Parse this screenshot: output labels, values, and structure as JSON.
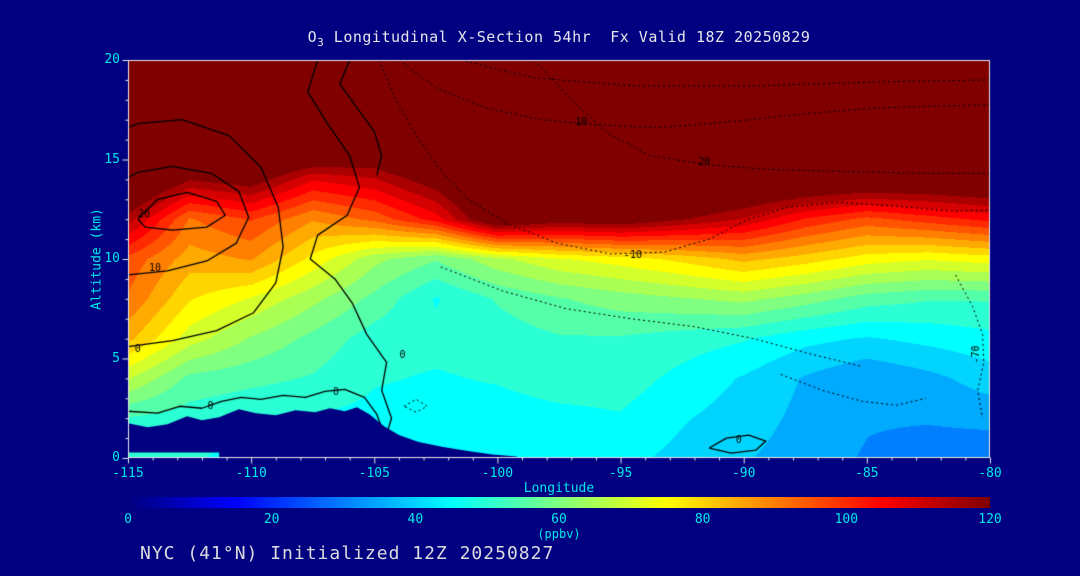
{
  "figure": {
    "title": {
      "pre": "O",
      "sub": "3",
      "rest": " Longitudinal X-Section 54hr  Fx Valid 18Z 20250829"
    },
    "caption": "NYC (41°N) Initialized 12Z 20250827",
    "colors": {
      "background": "#000080",
      "tick_label": "#00e8e8",
      "axis_label": "#00e8e8",
      "title_text": "#e6e6ea",
      "caption_text": "#dcdce0",
      "frame": "#e8e8e8",
      "contour": "#000000",
      "terrain": "#000080"
    }
  },
  "axes": {
    "x": {
      "label": "Longitude",
      "range": [
        -115,
        -80
      ],
      "ticks": [
        -115,
        -110,
        -105,
        -100,
        -95,
        -90,
        -85,
        -80
      ],
      "minor_step": 1
    },
    "y": {
      "label": "Altitude (km)",
      "range": [
        0,
        20
      ],
      "ticks": [
        0,
        5,
        10,
        15,
        20
      ],
      "minor_step": 1
    }
  },
  "colorbar": {
    "units": "(ppbv)",
    "range": [
      0,
      120
    ],
    "ticks": [
      0,
      20,
      40,
      60,
      80,
      100,
      120
    ],
    "colormap": "jet"
  },
  "chart_data": {
    "type": "heatmap",
    "title": "O3 Longitudinal X-Section 54hr  Fx Valid 18Z 20250829",
    "xlabel": "Longitude",
    "ylabel": "Altitude (km)",
    "units": "ppbv",
    "colormap": "jet",
    "clim": [
      0,
      120
    ],
    "band_step_ppbv": 5,
    "x_lon": [
      -115,
      -112.5,
      -110,
      -107.5,
      -105,
      -102.5,
      -100,
      -97.5,
      -95,
      -92.5,
      -90,
      -87.5,
      -85,
      -82.5,
      -80
    ],
    "y_alt_km": [
      0,
      2,
      4,
      6,
      8,
      10,
      12,
      14,
      16,
      18,
      20
    ],
    "values_ppbv": [
      [
        50,
        48,
        46,
        45,
        45,
        44,
        43,
        44,
        44,
        41,
        38,
        35,
        32,
        30,
        29
      ],
      [
        52,
        50,
        48,
        47,
        46,
        45,
        45,
        46,
        47,
        43,
        40,
        36,
        33,
        33,
        34
      ],
      [
        68,
        56,
        54,
        52,
        48,
        47,
        48,
        50,
        50,
        46,
        42,
        37,
        33,
        36,
        40
      ],
      [
        84,
        70,
        62,
        56,
        50,
        49,
        50,
        52,
        52,
        50,
        48,
        44,
        42,
        44,
        46
      ],
      [
        92,
        78,
        72,
        64,
        56,
        47,
        53,
        57,
        60,
        62,
        64,
        60,
        55,
        53,
        53
      ],
      [
        96,
        85,
        88,
        76,
        64,
        58,
        66,
        72,
        75,
        79,
        84,
        80,
        75,
        73,
        75
      ],
      [
        115,
        92,
        98,
        88,
        94,
        105,
        128,
        122,
        124,
        118,
        112,
        102,
        96,
        100,
        104
      ],
      [
        135,
        118,
        122,
        108,
        112,
        122,
        138,
        138,
        138,
        136,
        133,
        130,
        128,
        128,
        130
      ],
      [
        145,
        140,
        142,
        138,
        132,
        140,
        146,
        148,
        148,
        147,
        146,
        145,
        144,
        145,
        146
      ],
      [
        150,
        150,
        150,
        148,
        146,
        150,
        150,
        150,
        150,
        150,
        150,
        150,
        150,
        150,
        150
      ],
      [
        150,
        150,
        150,
        150,
        150,
        150,
        150,
        150,
        150,
        150,
        150,
        150,
        150,
        150,
        150
      ]
    ],
    "terrain_profile_km": [
      [
        -115,
        1.75
      ],
      [
        -114.2,
        1.55
      ],
      [
        -113.4,
        1.7
      ],
      [
        -112.6,
        2.1
      ],
      [
        -112,
        1.9
      ],
      [
        -111.3,
        2.05
      ],
      [
        -110.5,
        2.45
      ],
      [
        -109.8,
        2.25
      ],
      [
        -109,
        2.15
      ],
      [
        -108.2,
        2.4
      ],
      [
        -107.4,
        2.3
      ],
      [
        -106.8,
        2.5
      ],
      [
        -106.2,
        2.35
      ],
      [
        -105.7,
        2.55
      ],
      [
        -105.2,
        2.2
      ],
      [
        -104.6,
        1.6
      ],
      [
        -104,
        1.15
      ],
      [
        -103.2,
        0.8
      ],
      [
        -102.2,
        0.55
      ],
      [
        -101.2,
        0.35
      ],
      [
        -100.2,
        0.18
      ],
      [
        -99.2,
        0.08
      ]
    ],
    "terrain_bottom_gap": {
      "lon_from": -115,
      "lon_to": -111.3,
      "alt_km": 0.28
    },
    "contour_lines": [
      {
        "style": "solid",
        "points": [
          [
            -114.6,
            12.0
          ],
          [
            -113.8,
            13.0
          ],
          [
            -112.6,
            13.35
          ],
          [
            -111.4,
            12.9
          ],
          [
            -111.05,
            12.2
          ],
          [
            -111.8,
            11.6
          ],
          [
            -113.2,
            11.45
          ],
          [
            -114.3,
            11.6
          ],
          [
            -114.6,
            12.0
          ]
        ]
      },
      {
        "style": "solid",
        "points": [
          [
            -115,
            9.2
          ],
          [
            -113.4,
            9.4
          ],
          [
            -111.8,
            9.9
          ],
          [
            -110.6,
            10.8
          ],
          [
            -110.1,
            12.1
          ],
          [
            -110.5,
            13.4
          ],
          [
            -111.6,
            14.3
          ],
          [
            -113.2,
            14.65
          ],
          [
            -114.6,
            14.35
          ],
          [
            -115,
            14.1
          ]
        ]
      },
      {
        "style": "solid",
        "points": [
          [
            -115,
            5.6
          ],
          [
            -113.2,
            5.9
          ],
          [
            -111.4,
            6.4
          ],
          [
            -109.9,
            7.3
          ],
          [
            -109.0,
            8.8
          ],
          [
            -108.7,
            10.6
          ],
          [
            -108.9,
            12.6
          ],
          [
            -109.6,
            14.6
          ],
          [
            -110.9,
            16.2
          ],
          [
            -112.8,
            17.0
          ],
          [
            -114.6,
            16.8
          ],
          [
            -115,
            16.6
          ]
        ]
      },
      {
        "style": "solid",
        "points": [
          [
            -107.3,
            20
          ],
          [
            -107.7,
            18.4
          ],
          [
            -106.9,
            16.8
          ],
          [
            -106.0,
            15.2
          ],
          [
            -105.6,
            13.6
          ],
          [
            -106.1,
            12.2
          ],
          [
            -107.3,
            11.2
          ],
          [
            -107.6,
            10.0
          ],
          [
            -106.6,
            9.0
          ],
          [
            -105.9,
            7.8
          ],
          [
            -105.3,
            6.2
          ],
          [
            -104.5,
            4.8
          ],
          [
            -104.7,
            3.4
          ],
          [
            -104.3,
            2.0
          ],
          [
            -104.6,
            0.8
          ],
          [
            -104.3,
            0
          ]
        ]
      },
      {
        "style": "solid",
        "points": [
          [
            -106.0,
            20
          ],
          [
            -106.4,
            18.8
          ],
          [
            -105.7,
            17.6
          ],
          [
            -105.0,
            16.4
          ],
          [
            -104.7,
            15.2
          ],
          [
            -104.9,
            14.2
          ]
        ]
      },
      {
        "style": "solid",
        "points": [
          [
            -115,
            2.35
          ],
          [
            -113.8,
            2.25
          ],
          [
            -112.9,
            2.6
          ],
          [
            -112.0,
            2.5
          ],
          [
            -111.2,
            2.85
          ],
          [
            -110.4,
            3.05
          ],
          [
            -109.6,
            2.95
          ],
          [
            -108.7,
            3.15
          ],
          [
            -107.8,
            3.05
          ],
          [
            -107.0,
            3.35
          ],
          [
            -106.2,
            3.45
          ],
          [
            -105.4,
            3.05
          ],
          [
            -104.9,
            2.2
          ],
          [
            -104.6,
            1.2
          ],
          [
            -104.0,
            0.5
          ],
          [
            -103.0,
            0.15
          ],
          [
            -102.0,
            0.05
          ]
        ]
      },
      {
        "style": "solid",
        "points": [
          [
            -91.4,
            0.5
          ],
          [
            -90.7,
            1.0
          ],
          [
            -89.8,
            1.15
          ],
          [
            -89.1,
            0.85
          ],
          [
            -89.5,
            0.4
          ],
          [
            -90.5,
            0.25
          ],
          [
            -91.4,
            0.5
          ]
        ]
      },
      {
        "style": "dotted",
        "points": [
          [
            -101.5,
            20
          ],
          [
            -98.5,
            19.1
          ],
          [
            -94.5,
            18.7
          ],
          [
            -89.5,
            18.7
          ],
          [
            -84.5,
            18.9
          ],
          [
            -80,
            19.0
          ]
        ]
      },
      {
        "style": "dotted",
        "points": [
          [
            -104.0,
            20
          ],
          [
            -102.5,
            18.6
          ],
          [
            -100.5,
            17.6
          ],
          [
            -98.2,
            17.0
          ],
          [
            -96.0,
            16.75
          ],
          [
            -93.5,
            16.6
          ],
          [
            -90.5,
            16.9
          ],
          [
            -87.5,
            17.3
          ],
          [
            -84.5,
            17.6
          ],
          [
            -80,
            17.75
          ]
        ]
      },
      {
        "style": "dotted",
        "points": [
          [
            -98.5,
            20
          ],
          [
            -97.0,
            18.0
          ],
          [
            -95.5,
            16.3
          ],
          [
            -93.8,
            15.2
          ],
          [
            -91.6,
            14.75
          ],
          [
            -89.0,
            14.5
          ],
          [
            -86.0,
            14.4
          ],
          [
            -82.5,
            14.3
          ],
          [
            -80,
            14.3
          ]
        ]
      },
      {
        "style": "dotted",
        "points": [
          [
            -104.8,
            20
          ],
          [
            -104.2,
            18.2
          ],
          [
            -103.4,
            16.4
          ],
          [
            -102.4,
            14.6
          ],
          [
            -101.2,
            13.0
          ],
          [
            -99.6,
            11.8
          ],
          [
            -97.6,
            10.8
          ],
          [
            -95.4,
            10.25
          ],
          [
            -93.2,
            10.35
          ],
          [
            -91.4,
            11.0
          ],
          [
            -89.8,
            12.0
          ],
          [
            -88.2,
            12.6
          ],
          [
            -86.2,
            12.85
          ],
          [
            -83.8,
            12.65
          ],
          [
            -81.6,
            12.4
          ],
          [
            -80,
            12.45
          ]
        ]
      },
      {
        "style": "dotted",
        "points": [
          [
            -81.4,
            9.2
          ],
          [
            -80.7,
            7.6
          ],
          [
            -80.3,
            6.2
          ],
          [
            -80.25,
            4.8
          ],
          [
            -80.5,
            3.4
          ],
          [
            -80.3,
            2.0
          ]
        ]
      },
      {
        "style": "dotted",
        "points": [
          [
            -88.5,
            4.2
          ],
          [
            -86.8,
            3.4
          ],
          [
            -85.2,
            2.85
          ],
          [
            -83.8,
            2.65
          ],
          [
            -82.6,
            3.0
          ]
        ]
      },
      {
        "style": "dotted",
        "points": [
          [
            -102.3,
            9.6
          ],
          [
            -99.8,
            8.4
          ],
          [
            -97.2,
            7.5
          ],
          [
            -94.6,
            7.0
          ],
          [
            -92.0,
            6.6
          ],
          [
            -89.6,
            6.0
          ],
          [
            -87.2,
            5.2
          ],
          [
            -85.2,
            4.6
          ]
        ]
      },
      {
        "style": "dotted",
        "points": [
          [
            -103.8,
            2.6
          ],
          [
            -103.3,
            2.95
          ],
          [
            -102.85,
            2.6
          ],
          [
            -103.3,
            2.3
          ],
          [
            -103.8,
            2.6
          ]
        ]
      }
    ],
    "contour_labels": [
      {
        "text": "20",
        "lon": -114.35,
        "alt": 12.25
      },
      {
        "text": "10",
        "lon": -113.9,
        "alt": 9.55
      },
      {
        "text": "0",
        "lon": -114.6,
        "alt": 5.45
      },
      {
        "text": "0",
        "lon": -103.85,
        "alt": 5.15
      },
      {
        "text": "0",
        "lon": -111.65,
        "alt": 2.6
      },
      {
        "text": "0",
        "lon": -106.55,
        "alt": 3.3
      },
      {
        "text": "0",
        "lon": -90.2,
        "alt": 0.9
      },
      {
        "text": "10",
        "lon": -96.6,
        "alt": 16.85
      },
      {
        "text": "20",
        "lon": -91.6,
        "alt": 14.85
      },
      {
        "text": "-10",
        "lon": -94.5,
        "alt": 10.2
      },
      {
        "text": "-70",
        "lon": -80.55,
        "alt": 5.2,
        "rotate": -90
      }
    ]
  }
}
